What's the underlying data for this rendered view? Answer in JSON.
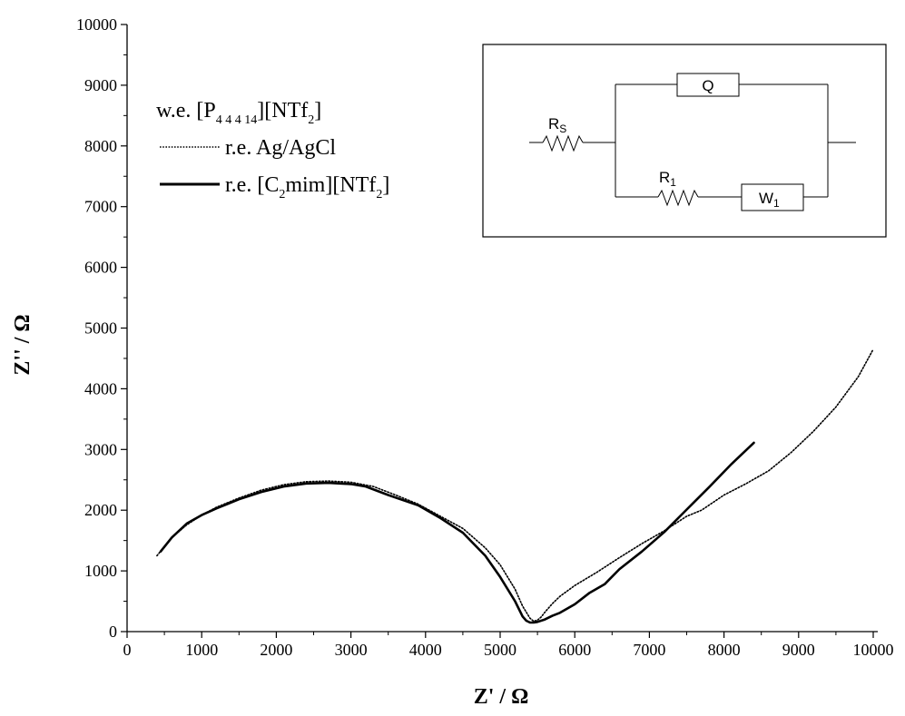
{
  "chart_data": {
    "type": "line",
    "xlabel": "Z' / Ω",
    "ylabel": "Z'' / Ω",
    "xlim": [
      0,
      10000
    ],
    "ylim": [
      0,
      10000
    ],
    "xticks": [
      "0",
      "1000",
      "2000",
      "3000",
      "4000",
      "5000",
      "6000",
      "7000",
      "8000",
      "9000",
      "10000"
    ],
    "yticks": [
      "0",
      "1000",
      "2000",
      "3000",
      "4000",
      "5000",
      "6000",
      "7000",
      "8000",
      "9000",
      "10000"
    ],
    "grid": false,
    "legend_position": "top-left",
    "legend": {
      "title": {
        "base": "w.e. [P",
        "sub": "4 4 4 14",
        "end": "][NTf",
        "sub2": "2",
        "close": "]"
      },
      "entries": [
        {
          "text": "r.e. Ag/AgCl",
          "style": "dotted"
        },
        {
          "base": "r.e. [C",
          "sub": "2",
          "mid": "mim][NTf",
          "sub2": "2",
          "close": "]",
          "style": "solid"
        }
      ]
    },
    "series": [
      {
        "style": "dotted",
        "x": [
          400,
          600,
          800,
          1000,
          1200,
          1500,
          1800,
          2100,
          2400,
          2700,
          3000,
          3300,
          3600,
          3900,
          4200,
          4500,
          4800,
          5000,
          5200,
          5300,
          5400,
          5450,
          5500,
          5550,
          5600,
          5700,
          5800,
          6000,
          6300,
          6600,
          6900,
          7200,
          7500,
          7700,
          8000,
          8300,
          8600,
          8900,
          9200,
          9500,
          9800,
          10000
        ],
        "y": [
          1250,
          1550,
          1760,
          1920,
          2050,
          2200,
          2330,
          2420,
          2470,
          2480,
          2460,
          2390,
          2250,
          2100,
          1900,
          1700,
          1380,
          1100,
          700,
          420,
          220,
          170,
          190,
          240,
          320,
          460,
          580,
          760,
          980,
          1220,
          1450,
          1660,
          1900,
          2000,
          2250,
          2440,
          2650,
          2950,
          3300,
          3700,
          4200,
          4650
        ]
      },
      {
        "style": "solid",
        "x": [
          450,
          600,
          800,
          1000,
          1200,
          1500,
          1800,
          2100,
          2400,
          2700,
          3000,
          3200,
          3500,
          3900,
          4200,
          4500,
          4800,
          5000,
          5200,
          5300,
          5350,
          5400,
          5450,
          5500,
          5600,
          5700,
          5800,
          6000,
          6200,
          6400,
          6600,
          6900,
          7200,
          7500,
          7800,
          8100,
          8400
        ],
        "y": [
          1320,
          1550,
          1780,
          1920,
          2030,
          2180,
          2300,
          2390,
          2440,
          2450,
          2430,
          2390,
          2250,
          2080,
          1870,
          1630,
          1250,
          900,
          500,
          250,
          180,
          150,
          150,
          160,
          200,
          260,
          310,
          450,
          640,
          780,
          1030,
          1320,
          1640,
          2010,
          2380,
          2760,
          3110
        ]
      }
    ],
    "inset": {
      "type": "circuit",
      "labels": {
        "rs": {
          "base": "R",
          "sub": "S"
        },
        "q": "Q",
        "r1": {
          "base": "R",
          "sub": "1"
        },
        "w1": {
          "base": "W",
          "sub": "1"
        }
      }
    }
  }
}
